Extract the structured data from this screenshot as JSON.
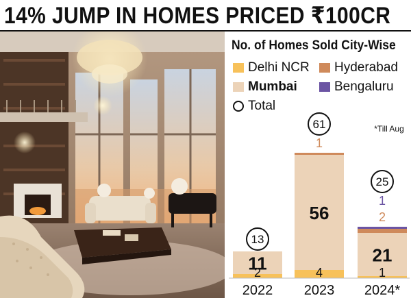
{
  "headline": "14% JUMP IN HOMES PRICED ₹100CR",
  "colors": {
    "delhi": "#f7c15a",
    "hyderabad": "#cf8a5b",
    "mumbai": "#ecd3b8",
    "bengaluru": "#6b54a3"
  },
  "photo": {
    "icon": "luxury-living-room-photo"
  },
  "chart_data": {
    "type": "bar",
    "title": "No. of Homes Sold City-Wise",
    "note": "*Till Aug",
    "categories": [
      "2022",
      "2023",
      "2024*"
    ],
    "series": [
      {
        "name": "Delhi NCR",
        "values": [
          2,
          4,
          1
        ]
      },
      {
        "name": "Mumbai",
        "values": [
          11,
          56,
          21
        ]
      },
      {
        "name": "Hyderabad",
        "values": [
          0,
          1,
          2
        ]
      },
      {
        "name": "Bengaluru",
        "values": [
          0,
          0,
          1
        ]
      }
    ],
    "totals": {
      "name": "Total",
      "values": [
        13,
        61,
        25
      ]
    },
    "legend": [
      "Delhi NCR",
      "Hyderabad",
      "Mumbai",
      "Bengaluru",
      "Total"
    ],
    "legend_position": "top",
    "grid": false
  }
}
